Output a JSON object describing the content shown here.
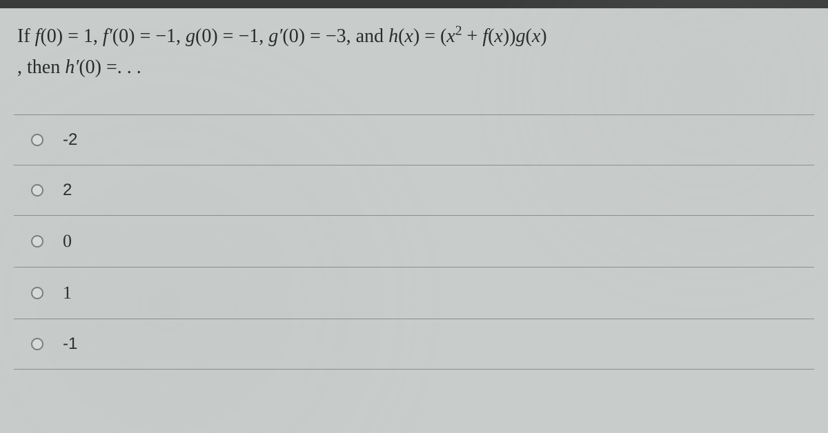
{
  "question": {
    "line1_parts": {
      "p1": "If ",
      "p2": "f",
      "p3": "(0) = 1, ",
      "p4": "f′",
      "p5": "(0) = −1, ",
      "p6": "g",
      "p7": "(0) = −1, ",
      "p8": "g′",
      "p9": "(0) = −3, and ",
      "p10": "h",
      "p11": "(",
      "p12": "x",
      "p13": ") = (",
      "p14": "x",
      "p15": "2",
      "p16": " + ",
      "p17": "f",
      "p18": "(",
      "p19": "x",
      "p20": "))",
      "p21": "g",
      "p22": "(",
      "p23": "x",
      "p24": ")"
    },
    "line2_parts": {
      "p1": ", then ",
      "p2": "h′",
      "p3": "(0) =. . ."
    }
  },
  "options": [
    {
      "label": "-2",
      "font": "sans"
    },
    {
      "label": "2",
      "font": "sans"
    },
    {
      "label": "0",
      "font": "serif"
    },
    {
      "label": "1",
      "font": "serif"
    },
    {
      "label": "-1",
      "font": "sans"
    }
  ],
  "styling": {
    "background_color": "#c8cccb",
    "border_color": "#8a8e8c",
    "text_color": "#2a2c2b",
    "radio_border": "#7a7e7c",
    "question_fontsize": 28,
    "option_fontsize": 24,
    "top_bar_color": "#3a3c3b"
  }
}
